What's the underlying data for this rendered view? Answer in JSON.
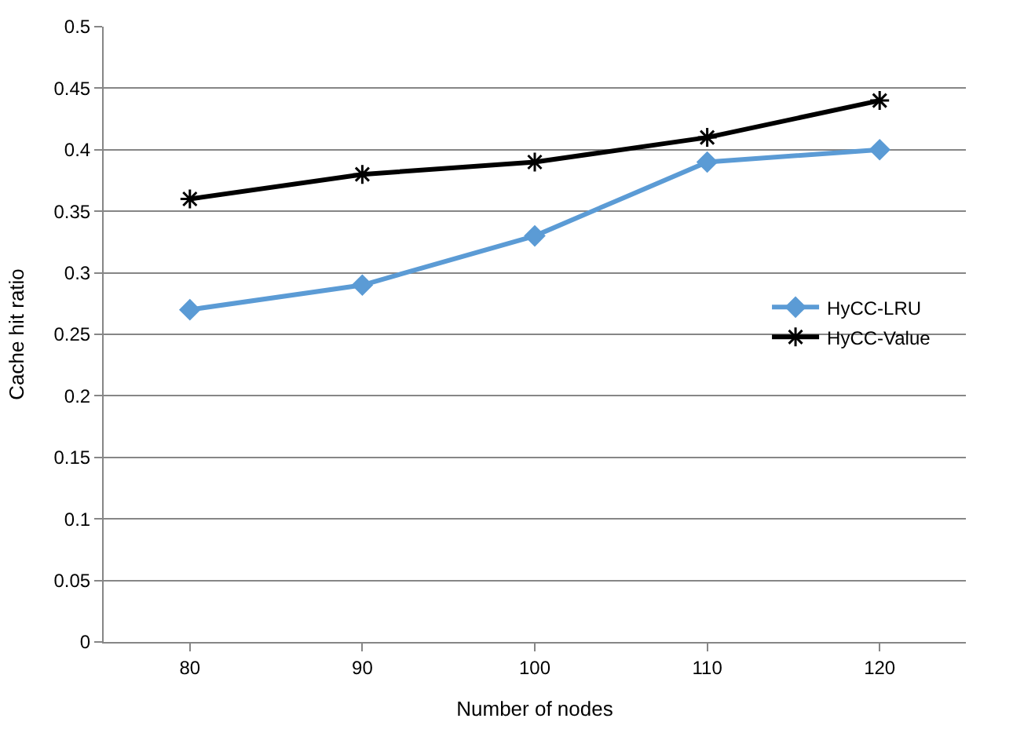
{
  "chart_data": {
    "type": "line",
    "xlabel": "Number of nodes",
    "ylabel": "Cache hit ratio",
    "categories": [
      "80",
      "90",
      "100",
      "110",
      "120"
    ],
    "series": [
      {
        "name": "HyCC-LRU",
        "color": "#5b9bd5",
        "marker": "diamond",
        "values": [
          0.27,
          0.29,
          0.33,
          0.39,
          0.4
        ]
      },
      {
        "name": "HyCC-Value",
        "color": "#000000",
        "marker": "cross",
        "values": [
          0.36,
          0.38,
          0.39,
          0.41,
          0.44
        ]
      }
    ],
    "ylim": [
      0,
      0.5
    ],
    "yticks": [
      0,
      0.05,
      0.1,
      0.15,
      0.2,
      0.25,
      0.3,
      0.35,
      0.4,
      0.45,
      0.5
    ],
    "grid": "y",
    "legend": "right",
    "line_style": "solid"
  }
}
